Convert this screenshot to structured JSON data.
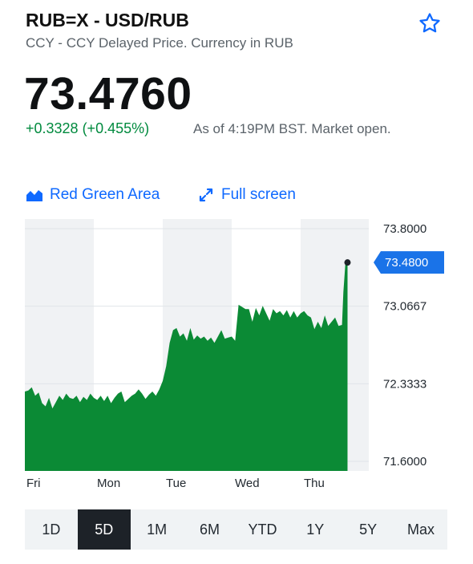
{
  "header": {
    "title": "RUB=X - USD/RUB",
    "subtitle": "CCY - CCY Delayed Price. Currency in RUB"
  },
  "quote": {
    "price": "73.4760",
    "change": "+0.3328 (+0.455%)",
    "as_of": "As of 4:19PM BST. Market open."
  },
  "toolbar": {
    "chart_type_label": "Red Green Area",
    "fullscreen_label": "Full screen"
  },
  "colors": {
    "accent": "#0f69ff",
    "positive": "#008a3e",
    "area": "#0b8a35",
    "current_badge": "#1a73e8"
  },
  "chart_data": {
    "type": "area",
    "x_tick_labels": [
      "Fri",
      "Mon",
      "Tue",
      "Wed",
      "Thu"
    ],
    "y_tick_labels": [
      "73.8000",
      "73.0667",
      "72.3333",
      "71.6000"
    ],
    "ylim": [
      71.6,
      73.8
    ],
    "current_value_label": "73.4800",
    "current_value": 73.48,
    "x": [
      0,
      0.05,
      0.1,
      0.15,
      0.2,
      0.25,
      0.3,
      0.35,
      0.4,
      0.45,
      0.5,
      0.55,
      0.6,
      0.65,
      0.7,
      0.75,
      0.8,
      0.85,
      0.9,
      0.95,
      1.0,
      1.05,
      1.1,
      1.15,
      1.2,
      1.25,
      1.3,
      1.35,
      1.4,
      1.45,
      1.5,
      1.55,
      1.6,
      1.65,
      1.7,
      1.75,
      1.8,
      1.85,
      1.9,
      1.95,
      2.0,
      2.05,
      2.1,
      2.15,
      2.2,
      2.25,
      2.3,
      2.35,
      2.4,
      2.45,
      2.5,
      2.55,
      2.6,
      2.65,
      2.7,
      2.75,
      2.8,
      2.85,
      2.9,
      2.95,
      3.0,
      3.05,
      3.1,
      3.15,
      3.2,
      3.25,
      3.3,
      3.35,
      3.4,
      3.45,
      3.5,
      3.55,
      3.6,
      3.65,
      3.7,
      3.75,
      3.8,
      3.85,
      3.9,
      3.95,
      4.0,
      4.05,
      4.1,
      4.15,
      4.2,
      4.25,
      4.3,
      4.35,
      4.4,
      4.45,
      4.5,
      4.55,
      4.6,
      4.62,
      4.65,
      4.68
    ],
    "values": [
      72.26,
      72.27,
      72.3,
      72.22,
      72.25,
      72.15,
      72.12,
      72.2,
      72.1,
      72.16,
      72.22,
      72.18,
      72.24,
      72.2,
      72.19,
      72.22,
      72.16,
      72.21,
      72.18,
      72.24,
      72.2,
      72.18,
      72.22,
      72.17,
      72.22,
      72.15,
      72.2,
      72.24,
      72.26,
      72.16,
      72.19,
      72.22,
      72.24,
      72.28,
      72.24,
      72.19,
      72.23,
      72.26,
      72.22,
      72.28,
      72.36,
      72.5,
      72.72,
      72.84,
      72.86,
      72.78,
      72.81,
      72.74,
      72.86,
      72.75,
      72.79,
      72.76,
      72.78,
      72.74,
      72.77,
      72.72,
      72.78,
      72.84,
      72.76,
      72.77,
      72.78,
      72.74,
      73.08,
      73.06,
      73.04,
      73.04,
      72.92,
      73.05,
      72.98,
      73.07,
      73.0,
      72.93,
      73.04,
      73.0,
      73.02,
      72.98,
      73.03,
      72.96,
      73.02,
      72.96,
      73.0,
      73.02,
      72.98,
      72.96,
      72.85,
      72.92,
      72.86,
      72.98,
      72.88,
      72.92,
      72.96,
      72.88,
      72.89,
      73.2,
      73.48,
      73.48
    ]
  },
  "ranges": [
    "1D",
    "5D",
    "1M",
    "6M",
    "YTD",
    "1Y",
    "5Y",
    "Max"
  ],
  "selected_range": "5D",
  "icons": {
    "favorite": "star-icon",
    "chart_type": "area-chart-icon",
    "fullscreen": "expand-icon"
  }
}
